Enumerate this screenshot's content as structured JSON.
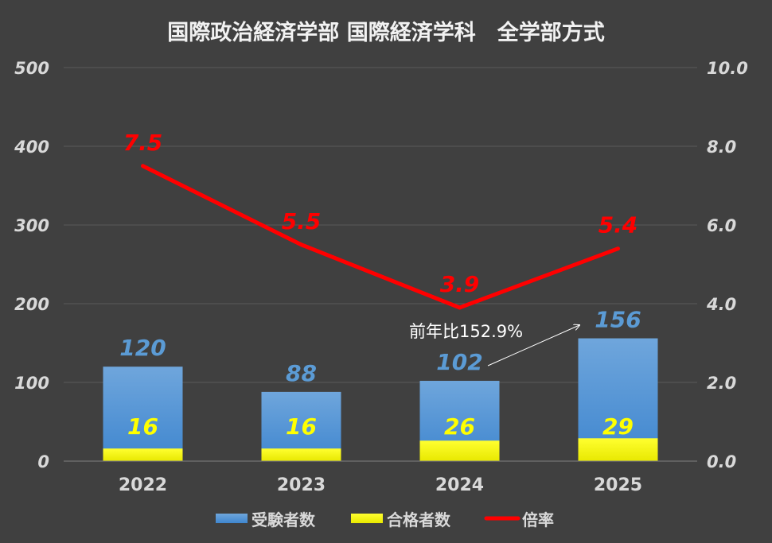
{
  "chart_data": {
    "type": "bar+line",
    "title": "国際政治経済学部 国際経済学科　全学部方式",
    "categories": [
      "2022",
      "2023",
      "2024",
      "2025"
    ],
    "series": [
      {
        "name": "受験者数",
        "type": "bar",
        "axis": "left",
        "values": [
          120,
          88,
          102,
          156
        ],
        "color": "#5b9bd5"
      },
      {
        "name": "合格者数",
        "type": "bar",
        "axis": "left",
        "values": [
          16,
          16,
          26,
          29
        ],
        "color": "#ffff00"
      },
      {
        "name": "倍率",
        "type": "line",
        "axis": "right",
        "values": [
          7.5,
          5.5,
          3.9,
          5.4
        ],
        "labels": [
          "7.5",
          "5.5",
          "3.9",
          "5.4"
        ],
        "color": "#ff0000"
      }
    ],
    "left_axis": {
      "ylim": [
        0,
        500
      ],
      "ticks": [
        "0",
        "100",
        "200",
        "300",
        "400",
        "500"
      ]
    },
    "right_axis": {
      "ylim": [
        0,
        10
      ],
      "ticks": [
        "0.0",
        "2.0",
        "4.0",
        "6.0",
        "8.0",
        "10.0"
      ]
    },
    "grid": true,
    "legend": "bottom",
    "annotation": {
      "text": "前年比152.9%"
    }
  }
}
